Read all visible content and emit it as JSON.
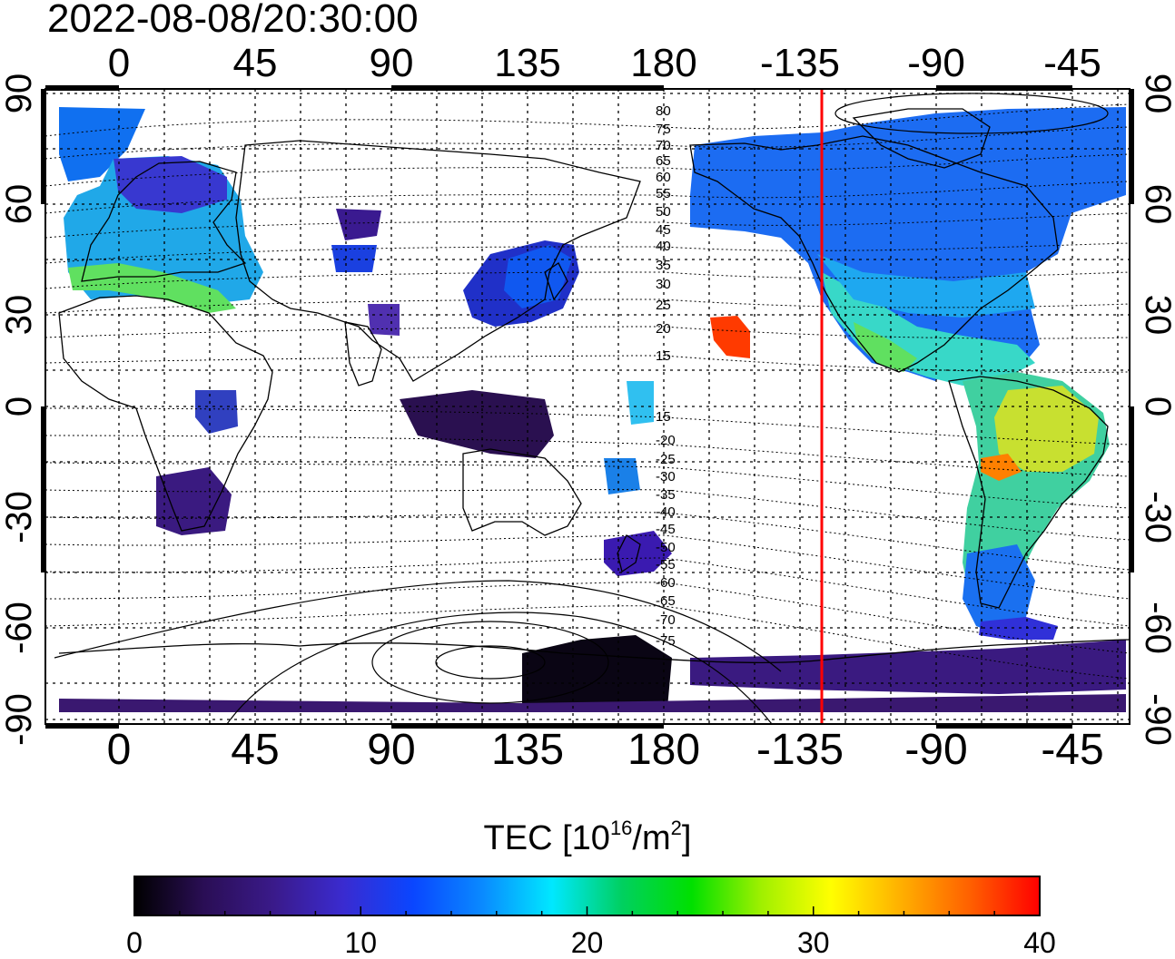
{
  "title": "2022-08-08/20:30:00",
  "map": {
    "top_axis_labels": [
      "0",
      "45",
      "90",
      "135",
      "180",
      "-135",
      "-90",
      "-45"
    ],
    "bottom_axis_labels": [
      "0",
      "45",
      "90",
      "135",
      "180",
      "-135",
      "-90",
      "-45"
    ],
    "left_axis_labels": [
      "90",
      "60",
      "30",
      "0",
      "-30",
      "-60",
      "-90"
    ],
    "right_axis_labels": [
      "90",
      "60",
      "30",
      "0",
      "-30",
      "-60",
      "-90"
    ],
    "grid": true,
    "terminator_line_color": "#ff0000",
    "magnetic_latitude_labels": [
      "80",
      "75",
      "70",
      "65",
      "60",
      "55",
      "50",
      "45",
      "40",
      "35",
      "30",
      "25",
      "20",
      "15",
      "15",
      "-20",
      "-25",
      "-30",
      "-35",
      "-40",
      "-45",
      "-50",
      "-55",
      "-60",
      "-65",
      "-70",
      "-75"
    ]
  },
  "colorbar": {
    "title_main": "TEC  [10",
    "title_exp": "16",
    "title_unit": "/m",
    "title_unit_exp": "2",
    "title_close": "]",
    "min": 0,
    "max": 40,
    "tick_labels": [
      "0",
      "10",
      "20",
      "30",
      "40"
    ],
    "colors": [
      "#000000",
      "#2a0e55",
      "#3a1a8a",
      "#3a2bd0",
      "#0a46ff",
      "#0a8aff",
      "#00e8ff",
      "#00d060",
      "#00e000",
      "#a0f000",
      "#ffff00",
      "#ffb000",
      "#ff6000",
      "#ff0000"
    ]
  }
}
